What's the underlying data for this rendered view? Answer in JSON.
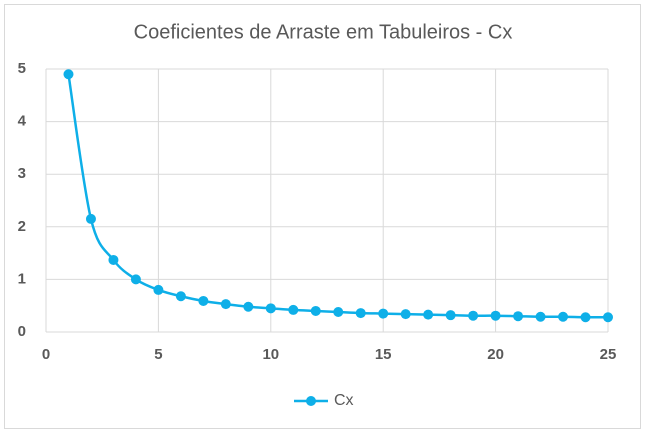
{
  "chart_data": {
    "type": "line",
    "title": "Coeficientes de Arraste em Tabuleiros - Cx",
    "x": [
      1,
      2,
      3,
      4,
      5,
      6,
      7,
      8,
      9,
      10,
      11,
      12,
      13,
      14,
      15,
      16,
      17,
      18,
      19,
      20,
      21,
      22,
      23,
      24,
      25
    ],
    "series": [
      {
        "name": "Cx",
        "color": "#0eafe8",
        "values": [
          4.9,
          2.15,
          1.37,
          1.0,
          0.8,
          0.68,
          0.59,
          0.53,
          0.48,
          0.45,
          0.42,
          0.4,
          0.38,
          0.36,
          0.35,
          0.34,
          0.33,
          0.32,
          0.31,
          0.31,
          0.3,
          0.29,
          0.29,
          0.28,
          0.28
        ]
      }
    ],
    "xlim": [
      0,
      25
    ],
    "xticks": [
      0,
      5,
      10,
      15,
      20,
      25
    ],
    "ylim": [
      0,
      5
    ],
    "yticks": [
      0,
      1,
      2,
      3,
      4,
      5
    ],
    "grid": true,
    "legend": "bottom"
  }
}
